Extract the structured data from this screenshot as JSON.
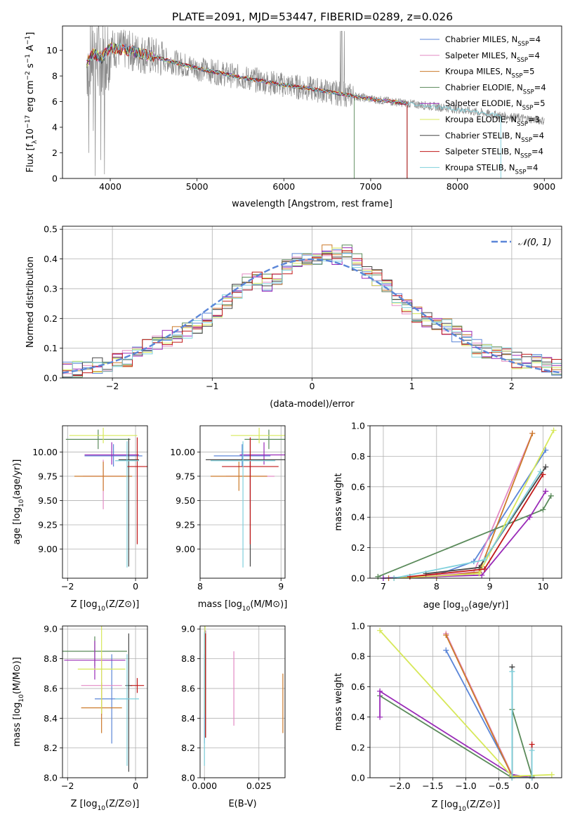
{
  "figure_title": "PLATE=2091, MJD=53447, FIBERID=0289, z=0.026",
  "colors": [
    "#5b86d8",
    "#e38ac4",
    "#cc7a2a",
    "#5a8a5a",
    "#9a2bb8",
    "#d7e85a",
    "#454545",
    "#c01818",
    "#7fd0dc"
  ],
  "chart_data": [
    {
      "id": "spectrum",
      "type": "line",
      "xlabel": "wavelength [Angstrom, rest frame]",
      "ylabel": "Flux [f",
      "ylabel_parts": [
        "Flux [f",
        "λ",
        "10",
        "−17",
        " erg cm",
        "−2",
        " s",
        "−1",
        " A",
        "−1",
        "]"
      ],
      "xlim": [
        3450,
        9200
      ],
      "ylim": [
        0,
        11.9
      ],
      "xticks": [
        4000,
        5000,
        6000,
        7000,
        8000,
        9000
      ],
      "xtick_labels": [
        "4000",
        "5000",
        "6000",
        "7000",
        "8000",
        "9000"
      ],
      "yticks": [
        0,
        2,
        4,
        6,
        8,
        10
      ],
      "ytick_labels": [
        "0",
        "2",
        "4",
        "6",
        "8",
        "10"
      ],
      "data_color": "#8a8a8a",
      "data_range": [
        3730,
        9000
      ],
      "model_ranges": [
        [
          3730,
          7420
        ],
        [
          3730,
          7420
        ],
        [
          3730,
          7420
        ],
        [
          3730,
          6810
        ],
        [
          3730,
          7420
        ],
        [
          3730,
          7420
        ],
        [
          3730,
          7420
        ],
        [
          3730,
          7420
        ],
        [
          3730,
          8500
        ]
      ],
      "continuum": {
        "x": [
          3730,
          3800,
          3900,
          4000,
          4200,
          4500,
          5000,
          5500,
          6000,
          6500,
          7000,
          7500,
          8000,
          8500,
          9000
        ],
        "y": [
          9.0,
          9.8,
          9.4,
          10.2,
          10.0,
          9.5,
          8.6,
          7.9,
          7.3,
          6.8,
          6.2,
          5.8,
          5.4,
          4.9,
          4.5
        ]
      },
      "legend": [
        "Chabrier MILES, N_SSP=4",
        "Salpeter MILES, N_SSP=4",
        "Kroupa MILES, N_SSP=5",
        "Chabrier ELODIE, N_SSP=4",
        "Salpeter ELODIE, N_SSP=5",
        "Kroupa ELODIE, N_SSP=3",
        "Chabrier STELIB, N_SSP=4",
        "Salpeter STELIB, N_SSP=4",
        "Kroupa STELIB, N_SSP=4"
      ],
      "legend_main": [
        "Chabrier MILES, N",
        "Salpeter MILES, N",
        "Kroupa MILES, N",
        "Chabrier ELODIE, N",
        "Salpeter ELODIE, N",
        "Kroupa ELODIE, N",
        "Chabrier STELIB, N",
        "Salpeter STELIB, N",
        "Kroupa STELIB, N"
      ],
      "legend_sub": "SSP",
      "legend_tail": [
        "=4",
        "=4",
        "=5",
        "=4",
        "=5",
        "=3",
        "=4",
        "=4",
        "=4"
      ],
      "legend_position": "upper-right",
      "grid": false
    },
    {
      "id": "residual-histogram",
      "type": "line",
      "xlabel": "(data-model)/error",
      "ylabel": "Normed distribution",
      "xlim": [
        -2.5,
        2.5
      ],
      "ylim": [
        0,
        0.51
      ],
      "xticks": [
        -2,
        -1,
        0,
        1,
        2
      ],
      "xtick_labels": [
        "−2",
        "−1",
        "0",
        "1",
        "2"
      ],
      "yticks": [
        0,
        0.1,
        0.2,
        0.3,
        0.4,
        0.5
      ],
      "ytick_labels": [
        "0.0",
        "0.1",
        "0.2",
        "0.3",
        "0.4",
        "0.5"
      ],
      "bin_edges": [
        -2.5,
        -2.4,
        -2.3,
        -2.2,
        -2.1,
        -2.0,
        -1.9,
        -1.8,
        -1.7,
        -1.6,
        -1.5,
        -1.4,
        -1.3,
        -1.2,
        -1.1,
        -1.0,
        -0.9,
        -0.8,
        -0.7,
        -0.6,
        -0.5,
        -0.4,
        -0.3,
        -0.2,
        -0.1,
        0.0,
        0.1,
        0.2,
        0.3,
        0.4,
        0.5,
        0.6,
        0.7,
        0.8,
        0.9,
        1.0,
        1.1,
        1.2,
        1.3,
        1.4,
        1.5,
        1.6,
        1.7,
        1.8,
        1.9,
        2.0,
        2.1,
        2.2,
        2.3,
        2.4,
        2.5
      ],
      "base_counts": [
        0.024,
        0.026,
        0.032,
        0.04,
        0.05,
        0.06,
        0.068,
        0.08,
        0.1,
        0.115,
        0.13,
        0.15,
        0.16,
        0.18,
        0.2,
        0.23,
        0.26,
        0.29,
        0.32,
        0.33,
        0.32,
        0.34,
        0.37,
        0.39,
        0.41,
        0.4,
        0.42,
        0.41,
        0.42,
        0.39,
        0.36,
        0.34,
        0.31,
        0.27,
        0.24,
        0.21,
        0.2,
        0.19,
        0.17,
        0.15,
        0.13,
        0.1,
        0.09,
        0.09,
        0.08,
        0.06,
        0.05,
        0.05,
        0.045,
        0.035
      ],
      "gaussian_label": "𝒩(0, 1)",
      "gaussian_color": "#5b86d8",
      "legend_position": "upper-right",
      "grid": true
    },
    {
      "id": "age-vs-metallicity",
      "type": "scatter",
      "xlabel": "Z [log",
      "xlabel_parts": [
        "Z [log",
        "10",
        "(Z/Z",
        "⊙",
        ")]"
      ],
      "ylabel_parts": [
        "age  [log",
        "10",
        "(age/yr)]"
      ],
      "xlim": [
        -2.15,
        0.35
      ],
      "ylim": [
        8.7,
        10.27
      ],
      "xticks": [
        -2,
        0
      ],
      "xtick_labels": [
        "−2",
        "0"
      ],
      "yticks": [
        9.0,
        9.25,
        9.5,
        9.75,
        10.0
      ],
      "ytick_labels": [
        "9.00",
        "9.25",
        "9.50",
        "9.75",
        "10.00"
      ],
      "points": [
        {
          "x": -0.65,
          "y": 9.96,
          "xerr": 0.85,
          "yerr": [
            0.12,
            0.11
          ],
          "color": 0
        },
        {
          "x": -0.95,
          "y": 9.75,
          "xerr": 0.6,
          "yerr": [
            0.17,
            0.34
          ],
          "color": 1
        },
        {
          "x": -0.95,
          "y": 9.75,
          "xerr": 0.85,
          "yerr": [
            0.15,
            0.15
          ],
          "color": 2
        },
        {
          "x": -1.1,
          "y": 10.13,
          "xerr": 0.95,
          "yerr": [
            0.1,
            0.1
          ],
          "color": 3
        },
        {
          "x": -0.7,
          "y": 9.97,
          "xerr": 0.8,
          "yerr": [
            0.13,
            0.1
          ],
          "color": 4
        },
        {
          "x": -0.95,
          "y": 10.17,
          "xerr": 1.0,
          "yerr": [
            0.08,
            0.08
          ],
          "color": 5
        },
        {
          "x": -0.2,
          "y": 9.92,
          "xerr": 0.3,
          "yerr": [
            0.22,
            1.1
          ],
          "color": 6
        },
        {
          "x": 0.05,
          "y": 9.85,
          "xerr": 0.3,
          "yerr": [
            0.3,
            0.8
          ],
          "color": 7
        },
        {
          "x": -0.25,
          "y": 9.91,
          "xerr": 0.35,
          "yerr": [
            0.2,
            1.1
          ],
          "color": 8
        }
      ]
    },
    {
      "id": "age-vs-mass",
      "type": "scatter",
      "xlabel": "mass [log",
      "xlabel_parts": [
        "mass [log",
        "10",
        "(M/M",
        "⊙",
        ")]"
      ],
      "xlim": [
        8.0,
        9.05
      ],
      "ylim": [
        8.7,
        10.27
      ],
      "xticks": [
        8,
        9
      ],
      "xtick_labels": [
        "8",
        "9"
      ],
      "yticks": [
        9.0,
        9.25,
        9.5,
        9.75,
        10.0
      ],
      "ytick_labels": [
        "9.00",
        "9.25",
        "9.50",
        "9.75",
        "10.00"
      ],
      "points": [
        {
          "x": 8.52,
          "y": 9.96,
          "xerr": 0.35,
          "yerr": [
            0.12,
            0.11
          ],
          "color": 0
        },
        {
          "x": 8.62,
          "y": 9.75,
          "xerr": 0.3,
          "yerr": [
            0.17,
            0.34
          ],
          "color": 1
        },
        {
          "x": 8.48,
          "y": 9.75,
          "xerr": 0.35,
          "yerr": [
            0.15,
            0.15
          ],
          "color": 2
        },
        {
          "x": 8.85,
          "y": 10.13,
          "xerr": 0.3,
          "yerr": [
            0.1,
            0.1
          ],
          "color": 3
        },
        {
          "x": 8.79,
          "y": 9.97,
          "xerr": 0.3,
          "yerr": [
            0.13,
            0.1
          ],
          "color": 4
        },
        {
          "x": 8.73,
          "y": 10.17,
          "xerr": 0.35,
          "yerr": [
            0.08,
            0.08
          ],
          "color": 5
        },
        {
          "x": 8.62,
          "y": 9.92,
          "xerr": 0.55,
          "yerr": [
            0.22,
            1.1
          ],
          "color": 6
        },
        {
          "x": 8.62,
          "y": 9.85,
          "xerr": 0.35,
          "yerr": [
            0.3,
            0.8
          ],
          "color": 7
        },
        {
          "x": 8.53,
          "y": 9.91,
          "xerr": 0.4,
          "yerr": [
            0.2,
            1.1
          ],
          "color": 8
        }
      ]
    },
    {
      "id": "massweight-vs-age",
      "type": "line",
      "xlabel_parts": [
        "age  [log",
        "10",
        "(age/yr)]"
      ],
      "ylabel": "mass weight",
      "xlim": [
        6.75,
        10.35
      ],
      "ylim": [
        0,
        1.0
      ],
      "xticks": [
        7,
        8,
        9,
        10
      ],
      "xtick_labels": [
        "7",
        "8",
        "9",
        "10"
      ],
      "yticks": [
        0,
        0.2,
        0.4,
        0.6,
        0.8,
        1.0
      ],
      "ytick_labels": [
        "0.0",
        "0.2",
        "0.4",
        "0.6",
        "0.8",
        "1.0"
      ],
      "grid": true,
      "series": [
        {
          "color": 0,
          "x": [
            7.0,
            8.0,
            8.7,
            10.05
          ],
          "y": [
            0.0,
            0.02,
            0.11,
            0.84
          ]
        },
        {
          "color": 1,
          "x": [
            7.2,
            8.0,
            8.7,
            9.8
          ],
          "y": [
            0.0,
            0.02,
            0.04,
            0.95
          ]
        },
        {
          "color": 2,
          "x": [
            7.1,
            8.0,
            8.8,
            9.8
          ],
          "y": [
            0.0,
            0.01,
            0.04,
            0.95
          ]
        },
        {
          "color": 3,
          "x": [
            6.9,
            10.0,
            10.15
          ],
          "y": [
            0.01,
            0.45,
            0.54
          ]
        },
        {
          "color": 4,
          "x": [
            7.0,
            8.85,
            9.75,
            10.05
          ],
          "y": [
            0.0,
            0.02,
            0.4,
            0.57
          ]
        },
        {
          "color": 5,
          "x": [
            7.2,
            8.8,
            10.2
          ],
          "y": [
            0.0,
            0.03,
            0.97
          ]
        },
        {
          "color": 6,
          "x": [
            7.8,
            8.8,
            10.05
          ],
          "y": [
            0.03,
            0.07,
            0.73
          ]
        },
        {
          "color": 7,
          "x": [
            7.5,
            8.9,
            10.0
          ],
          "y": [
            0.01,
            0.06,
            0.68
          ]
        },
        {
          "color": 8,
          "x": [
            7.2,
            8.9,
            9.95
          ],
          "y": [
            0.0,
            0.12,
            0.7
          ]
        }
      ]
    },
    {
      "id": "mass-vs-metallicity",
      "type": "scatter",
      "xlabel_parts": [
        "Z [log",
        "10",
        "(Z/Z",
        "⊙",
        ")]"
      ],
      "ylabel_parts": [
        "mass [log",
        "10",
        "(M/M",
        "⊙",
        ")]"
      ],
      "xlim": [
        -2.15,
        0.35
      ],
      "ylim": [
        8.0,
        9.02
      ],
      "xticks": [
        -2,
        0
      ],
      "xtick_labels": [
        "−2",
        "0"
      ],
      "yticks": [
        8.0,
        8.2,
        8.4,
        8.6,
        8.8,
        9.0
      ],
      "ytick_labels": [
        "8.0",
        "8.2",
        "8.4",
        "8.6",
        "8.8",
        "9.0"
      ],
      "points": [
        {
          "x": -0.7,
          "y": 8.53,
          "xerr": 0.5,
          "yerr": [
            0.3,
            0.3
          ],
          "color": 0
        },
        {
          "x": -1.0,
          "y": 8.62,
          "xerr": 0.6,
          "yerr": [
            0.2,
            0.2
          ],
          "color": 1
        },
        {
          "x": -1.0,
          "y": 8.47,
          "xerr": 0.6,
          "yerr": [
            0.17,
            0.17
          ],
          "color": 2
        },
        {
          "x": -1.2,
          "y": 8.85,
          "xerr": 0.95,
          "yerr": [
            0.1,
            0.1
          ],
          "color": 3
        },
        {
          "x": -1.2,
          "y": 8.79,
          "xerr": 0.9,
          "yerr": [
            0.13,
            0.13
          ],
          "color": 4
        },
        {
          "x": -1.0,
          "y": 8.73,
          "xerr": 0.7,
          "yerr": [
            0.3,
            0.3
          ],
          "color": 5
        },
        {
          "x": -0.2,
          "y": 8.62,
          "xerr": 0.1,
          "yerr": [
            0.35,
            0.58
          ],
          "color": 6
        },
        {
          "x": 0.05,
          "y": 8.62,
          "xerr": 0.2,
          "yerr": [
            0.05,
            0.05
          ],
          "color": 7
        },
        {
          "x": -0.25,
          "y": 8.53,
          "xerr": 0.35,
          "yerr": [
            0.3,
            0.45
          ],
          "color": 8
        }
      ]
    },
    {
      "id": "mass-vs-extinction",
      "type": "scatter",
      "xlabel": "E(B-V)",
      "xlim": [
        -0.002,
        0.037
      ],
      "ylim": [
        8.0,
        9.02
      ],
      "xticks": [
        0.0,
        0.025
      ],
      "xtick_labels": [
        "0.000",
        "0.025"
      ],
      "yticks": [
        8.0,
        8.2,
        8.4,
        8.6,
        8.8,
        9.0
      ],
      "ytick_labels": [
        "8.0",
        "8.2",
        "8.4",
        "8.6",
        "8.8",
        "9.0"
      ],
      "points": [
        {
          "x": 0.0,
          "y": 8.53,
          "xerr": 0,
          "yerr": [
            0.3,
            0.3
          ],
          "color": 0
        },
        {
          "x": 0.0135,
          "y": 8.6,
          "xerr": 0,
          "yerr": [
            0.25,
            0.25
          ],
          "color": 1
        },
        {
          "x": 0.036,
          "y": 8.5,
          "xerr": 0,
          "yerr": [
            0.2,
            0.2
          ],
          "color": 2
        },
        {
          "x": 0.0005,
          "y": 8.85,
          "xerr": 0,
          "yerr": [
            0.1,
            0.1
          ],
          "color": 3
        },
        {
          "x": 0.0005,
          "y": 8.79,
          "xerr": 0,
          "yerr": [
            0.2,
            0.2
          ],
          "color": 4
        },
        {
          "x": 0.0003,
          "y": 8.73,
          "xerr": 0,
          "yerr": [
            0.3,
            0.3
          ],
          "color": 5
        },
        {
          "x": 0.0005,
          "y": 8.62,
          "xerr": 0,
          "yerr": [
            0.35,
            0.35
          ],
          "color": 6
        },
        {
          "x": 0.0005,
          "y": 8.62,
          "xerr": 0,
          "yerr": [
            0.35,
            0.35
          ],
          "color": 7
        },
        {
          "x": 0.0,
          "y": 8.53,
          "xerr": 0,
          "yerr": [
            0.45,
            0.45
          ],
          "color": 8
        }
      ]
    },
    {
      "id": "massweight-vs-metallicity",
      "type": "line",
      "xlabel_parts": [
        "Z [log",
        "10",
        "(Z/Z",
        "⊙",
        ")]"
      ],
      "ylabel": "mass weight",
      "xlim": [
        -2.45,
        0.45
      ],
      "ylim": [
        0,
        1.0
      ],
      "xticks": [
        -2.0,
        -1.5,
        -1.0,
        -0.5,
        0.0
      ],
      "xtick_labels": [
        "−2.0",
        "−1.5",
        "−1.0",
        "−0.5",
        "0.0"
      ],
      "yticks": [
        0,
        0.2,
        0.4,
        0.6,
        0.8,
        1.0
      ],
      "ytick_labels": [
        "0.0",
        "0.2",
        "0.4",
        "0.6",
        "0.8",
        "1.0"
      ],
      "grid": true,
      "series": [
        {
          "color": 0,
          "x": [
            -1.3,
            -0.3,
            0.0
          ],
          "y": [
            0.84,
            0.02,
            0.0
          ]
        },
        {
          "color": 1,
          "x": [
            -1.3,
            -0.3,
            0.0
          ],
          "y": [
            0.95,
            0.02,
            0.0
          ]
        },
        {
          "color": 2,
          "x": [
            -1.3,
            -0.3,
            0.0
          ],
          "y": [
            0.94,
            0.01,
            0.0
          ]
        },
        {
          "color": 3,
          "x": [
            -2.3,
            -0.3,
            -0.3,
            0.0
          ],
          "y": [
            0.54,
            0.0,
            0.45,
            0.01
          ]
        },
        {
          "color": 4,
          "x": [
            -2.3,
            -2.3,
            -0.3,
            0.0
          ],
          "y": [
            0.4,
            0.57,
            0.02,
            0.0
          ]
        },
        {
          "color": 5,
          "x": [
            -2.3,
            -0.3,
            0.3
          ],
          "y": [
            0.97,
            0.01,
            0.02
          ]
        },
        {
          "color": 6,
          "x": [
            -0.3,
            -0.3,
            0.0
          ],
          "y": [
            0.73,
            0.0,
            0.0
          ]
        },
        {
          "color": 7,
          "x": [
            0.0,
            0.0
          ],
          "y": [
            0.22,
            0.0
          ]
        },
        {
          "color": 8,
          "x": [
            -0.3,
            -0.3,
            0.0,
            0.0
          ],
          "y": [
            0.7,
            0.0,
            0.0,
            0.18
          ]
        }
      ]
    }
  ]
}
